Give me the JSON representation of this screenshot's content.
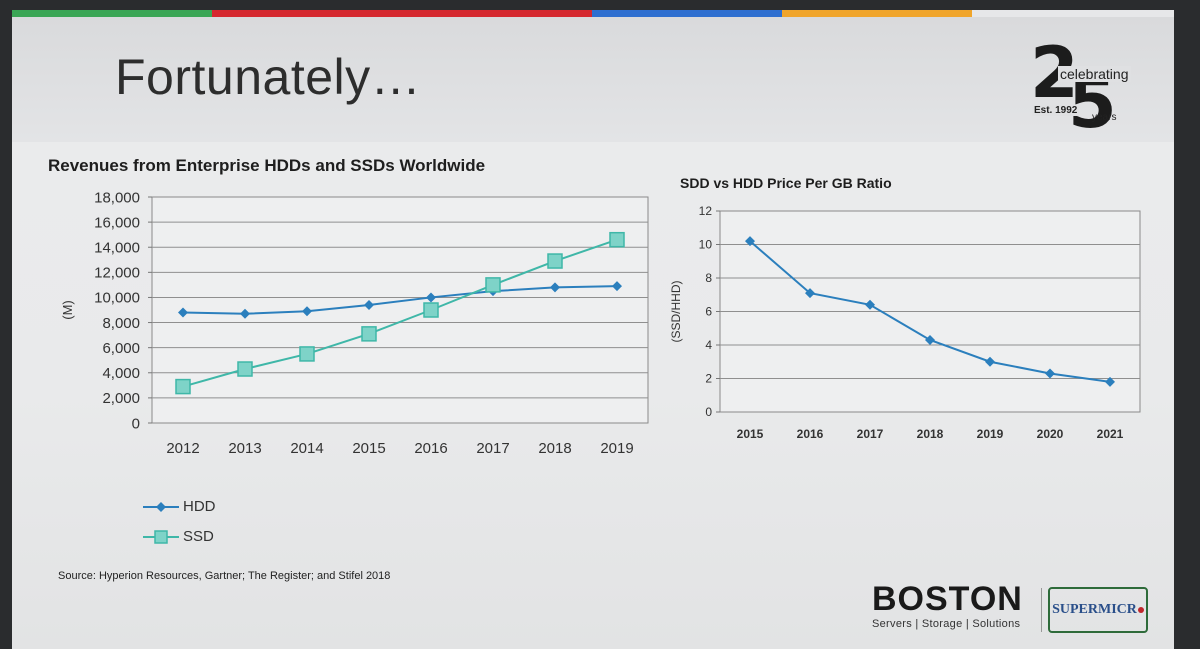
{
  "slide": {
    "title": "Fortunately…",
    "source": "Source: Hyperion Resources, Gartner; The Register; and Stifel 2018",
    "stripe_colors": [
      "#3aa655",
      "#d5282f",
      "#2e6fd0",
      "#f0a52b"
    ]
  },
  "badge": {
    "digit_two": "2",
    "digit_five": "5",
    "celebrating": "celebrating",
    "est": "Est. 1992",
    "years": "years"
  },
  "logos": {
    "boston_name": "BOSTON",
    "boston_tagline": "Servers | Storage | Solutions",
    "supermicro": "SUPERMICR"
  },
  "chart_data": [
    {
      "type": "line",
      "title": "Revenues from Enterprise HDDs and SSDs Worldwide",
      "ylabel": "(M)",
      "x": [
        "2012",
        "2013",
        "2014",
        "2015",
        "2016",
        "2017",
        "2018",
        "2019"
      ],
      "ylim": [
        0,
        18000
      ],
      "yticks": [
        "0",
        "2,000",
        "4,000",
        "6,000",
        "8,000",
        "10,000",
        "12,000",
        "14,000",
        "16,000",
        "18,000"
      ],
      "grid": true,
      "legend_position": "bottom-left",
      "series": [
        {
          "name": "HDD",
          "color": "#2b7fbd",
          "marker": "diamond",
          "values": [
            8800,
            8700,
            8900,
            9400,
            10000,
            10500,
            10800,
            10900
          ]
        },
        {
          "name": "SSD",
          "color": "#3fb7a8",
          "marker": "square",
          "values": [
            2900,
            4300,
            5500,
            7100,
            9000,
            11000,
            12900,
            14600
          ]
        }
      ]
    },
    {
      "type": "line",
      "title": "SDD vs HDD Price Per GB Ratio",
      "ylabel": "(SSD/HHD)",
      "x": [
        "2015",
        "2016",
        "2017",
        "2018",
        "2019",
        "2020",
        "2021"
      ],
      "ylim": [
        0,
        12
      ],
      "yticks": [
        "0",
        "2",
        "4",
        "6",
        "8",
        "10",
        "12"
      ],
      "grid": true,
      "series": [
        {
          "color": "#2b7fbd",
          "marker": "diamond",
          "values": [
            10.2,
            7.1,
            6.4,
            4.3,
            3.0,
            2.3,
            1.8
          ]
        }
      ]
    }
  ]
}
